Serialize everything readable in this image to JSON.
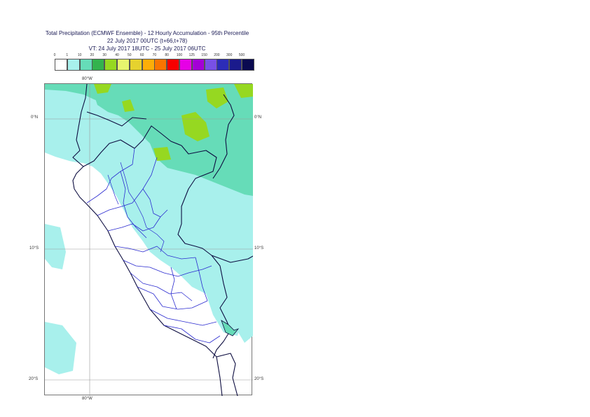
{
  "title": {
    "line1": "Total Precipitation (ECMWF Ensemble) - 12 Hourly Accumulation - 95th Percentile",
    "line2": "22 July 2017 00UTC (t+66,t+78)",
    "line3": "VT: 24 July 2017 18UTC - 25 July 2017 06UTC"
  },
  "legend": {
    "thresholds": [
      "0",
      "1",
      "10",
      "20",
      "30",
      "40",
      "50",
      "60",
      "70",
      "80",
      "100",
      "125",
      "150",
      "200",
      "300",
      "500"
    ],
    "colors": [
      "#ffffff",
      "#a8f0ec",
      "#66dcb8",
      "#33b34d",
      "#96d821",
      "#e6f56e",
      "#e6d22e",
      "#fcae08",
      "#f97400",
      "#f70000",
      "#e600e6",
      "#a400d6",
      "#7850e6",
      "#2c2cb8",
      "#1a1a8c",
      "#0a0a50"
    ]
  },
  "map": {
    "lat_labels": [
      "0°N",
      "10°S",
      "20°S"
    ],
    "lon_label": "80°W"
  }
}
